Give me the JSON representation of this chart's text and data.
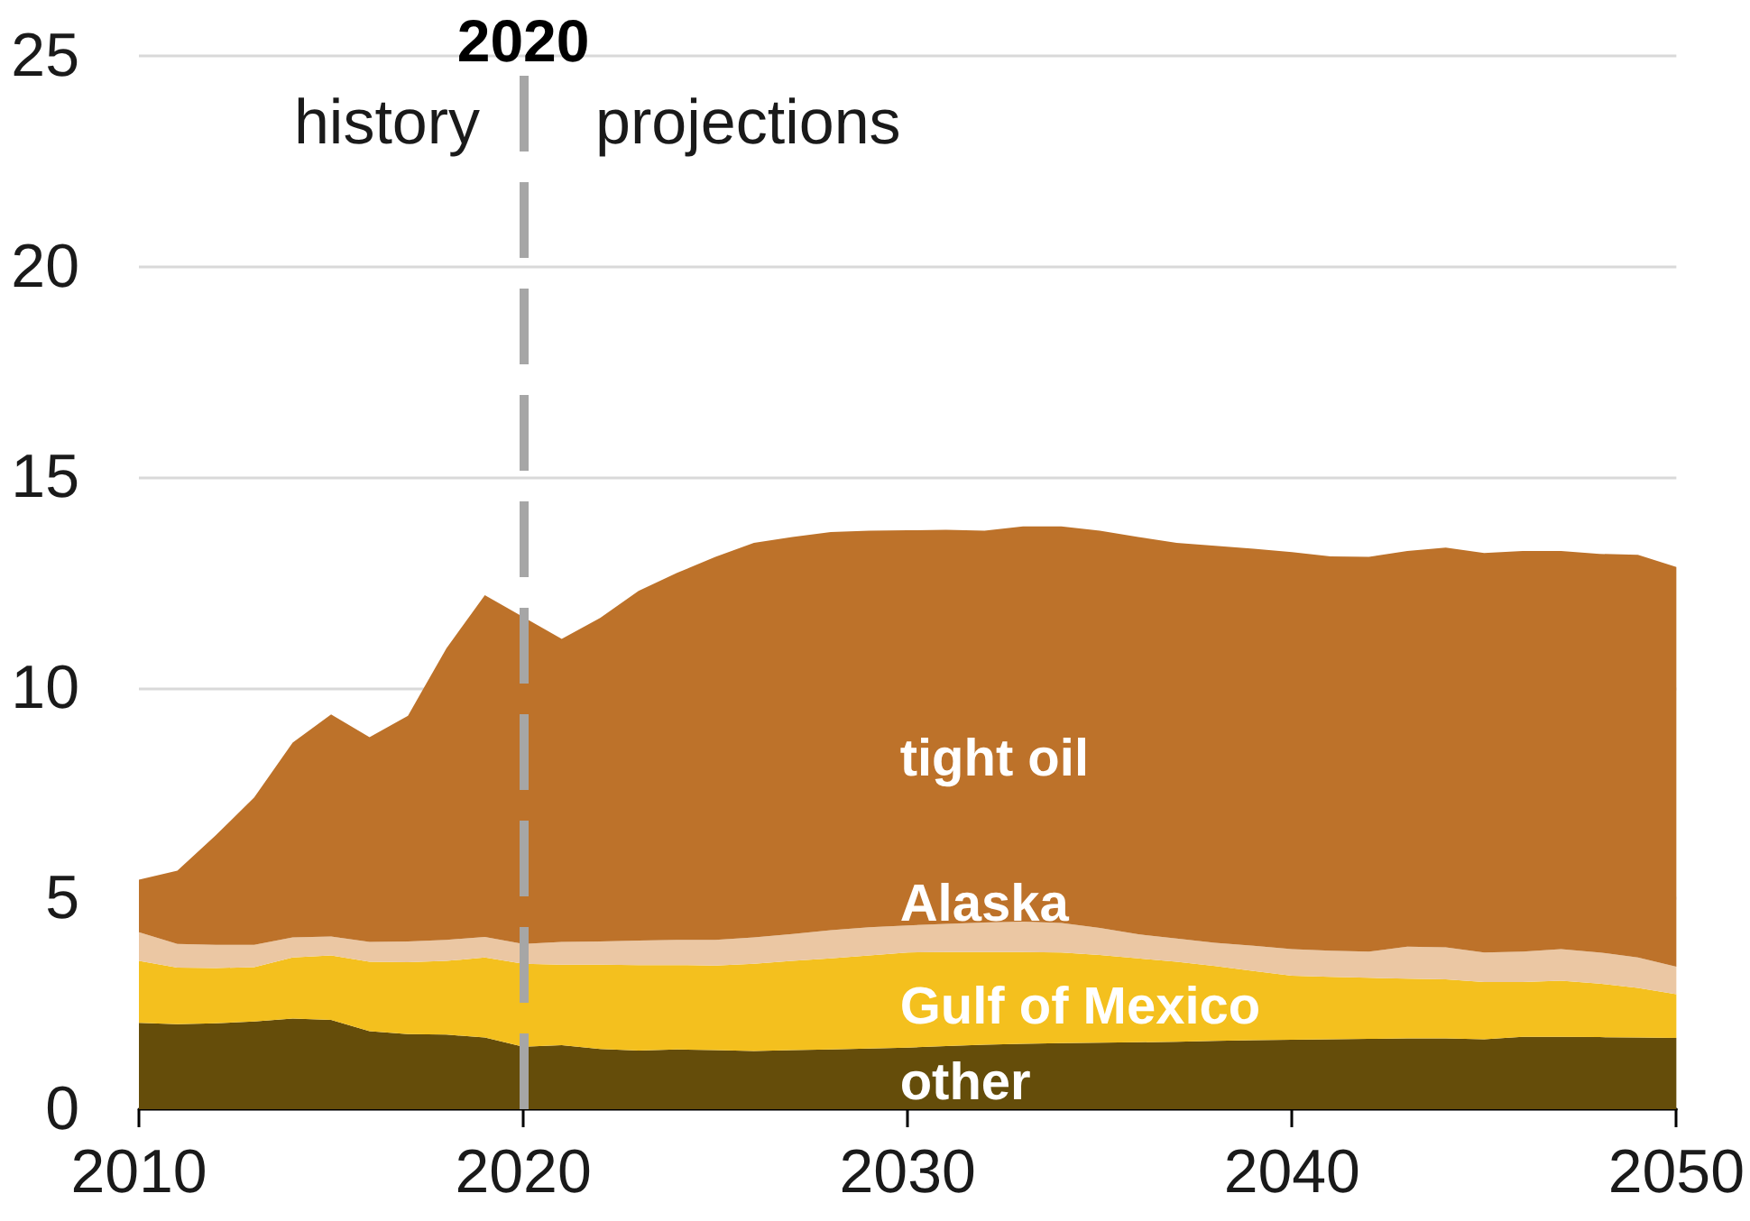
{
  "chart_data": {
    "type": "area",
    "stacked": true,
    "x": [
      2010,
      2011,
      2012,
      2013,
      2014,
      2015,
      2016,
      2017,
      2018,
      2019,
      2020,
      2021,
      2022,
      2023,
      2024,
      2025,
      2026,
      2027,
      2028,
      2029,
      2030,
      2031,
      2032,
      2033,
      2034,
      2035,
      2036,
      2037,
      2038,
      2039,
      2040,
      2041,
      2042,
      2043,
      2044,
      2045,
      2046,
      2047,
      2048,
      2049,
      2050
    ],
    "series": [
      {
        "name": "other",
        "color": "#654d0a",
        "values": [
          2.05,
          2.02,
          2.04,
          2.08,
          2.15,
          2.12,
          1.85,
          1.78,
          1.77,
          1.7,
          1.48,
          1.52,
          1.43,
          1.39,
          1.42,
          1.4,
          1.38,
          1.4,
          1.42,
          1.44,
          1.46,
          1.5,
          1.53,
          1.55,
          1.57,
          1.58,
          1.59,
          1.6,
          1.62,
          1.64,
          1.65,
          1.66,
          1.67,
          1.68,
          1.68,
          1.66,
          1.72,
          1.72,
          1.71,
          1.7,
          1.69
        ]
      },
      {
        "name": "Gulf of Mexico",
        "color": "#f4c01e",
        "values": [
          1.47,
          1.34,
          1.31,
          1.29,
          1.45,
          1.53,
          1.65,
          1.71,
          1.75,
          1.9,
          1.97,
          1.91,
          2.0,
          2.03,
          2.0,
          2.01,
          2.07,
          2.12,
          2.16,
          2.21,
          2.26,
          2.23,
          2.2,
          2.18,
          2.15,
          2.08,
          1.99,
          1.9,
          1.78,
          1.64,
          1.52,
          1.48,
          1.45,
          1.42,
          1.4,
          1.36,
          1.3,
          1.33,
          1.27,
          1.18,
          1.04
        ]
      },
      {
        "name": "Alaska",
        "color": "#ebc7a3",
        "values": [
          0.68,
          0.56,
          0.55,
          0.53,
          0.48,
          0.45,
          0.47,
          0.49,
          0.5,
          0.49,
          0.47,
          0.54,
          0.55,
          0.58,
          0.6,
          0.61,
          0.63,
          0.64,
          0.67,
          0.67,
          0.64,
          0.67,
          0.7,
          0.72,
          0.7,
          0.64,
          0.57,
          0.55,
          0.55,
          0.6,
          0.63,
          0.62,
          0.62,
          0.76,
          0.76,
          0.7,
          0.72,
          0.75,
          0.74,
          0.72,
          0.65
        ]
      },
      {
        "name": "tight oil",
        "color": "#bd722a",
        "values": [
          1.25,
          1.74,
          2.6,
          3.5,
          4.62,
          5.27,
          4.86,
          5.36,
          6.92,
          8.11,
          7.76,
          7.19,
          7.68,
          8.3,
          8.71,
          9.09,
          9.36,
          9.42,
          9.45,
          9.41,
          9.38,
          9.35,
          9.3,
          9.38,
          9.41,
          9.43,
          9.43,
          9.39,
          9.42,
          9.42,
          9.42,
          9.36,
          9.37,
          9.39,
          9.49,
          9.48,
          9.51,
          9.45,
          9.46,
          9.56,
          9.49
        ]
      }
    ],
    "xlim": [
      2010,
      2050
    ],
    "xticks": [
      2010,
      2020,
      2030,
      2040,
      2050
    ],
    "ylim": [
      0,
      25
    ],
    "yticks": [
      0,
      5,
      10,
      15,
      20,
      25
    ],
    "grid": "y",
    "ref_lines": [
      {
        "axis": "x",
        "value": 2020,
        "label": "2020",
        "color": "#a6a6a6",
        "line_style": "dashed"
      }
    ],
    "annotations": [
      "history",
      "projections"
    ]
  }
}
